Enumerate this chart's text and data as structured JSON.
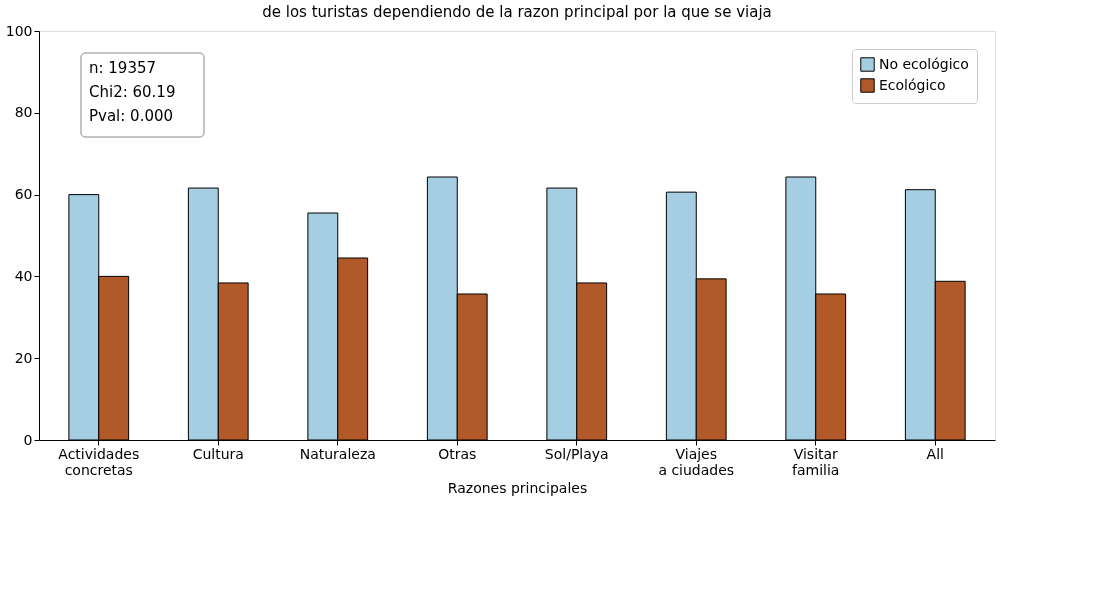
{
  "chart_data": {
    "type": "bar",
    "title": "de los turistas dependiendo de la razon principal por la que se viaja",
    "xlabel": "Razones principales",
    "categories": [
      "Actividades\nconcretas",
      "Cultura",
      "Naturaleza",
      "Otras",
      "Sol/Playa",
      "Viajes\na ciudades",
      "Visitar\nfamilia",
      "All"
    ],
    "series": [
      {
        "name": "No ecológico",
        "color": "#a6cee3",
        "values": [
          60.0,
          61.6,
          55.5,
          64.3,
          61.6,
          60.6,
          64.3,
          61.2
        ]
      },
      {
        "name": "Ecológico",
        "color": "#b15928",
        "values": [
          40.0,
          38.4,
          44.5,
          35.7,
          38.4,
          39.4,
          35.7,
          38.8
        ]
      }
    ],
    "ylim": [
      0,
      100
    ],
    "yticks": [
      0,
      20,
      40,
      60,
      80,
      100
    ],
    "grid": false,
    "legend": "top right",
    "annotations": [
      "n: 19357",
      "Chi2: 60.19",
      "Pval: 0.000"
    ]
  }
}
